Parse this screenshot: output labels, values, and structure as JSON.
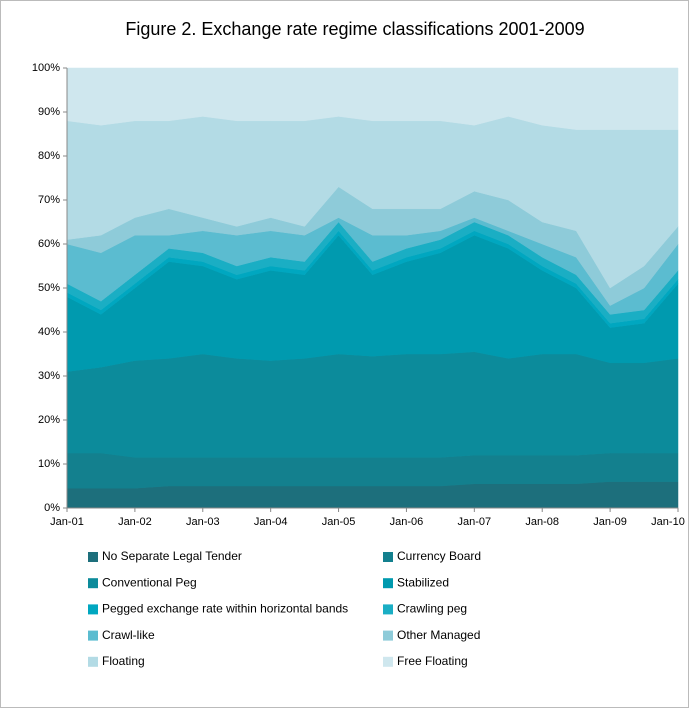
{
  "chart_data": {
    "type": "stacked_area",
    "title": "Figure 2. Exchange rate regime classifications 2001-2009",
    "categories": [
      "Jan-01",
      null,
      "Jan-02",
      null,
      "Jan-03",
      null,
      "Jan-04",
      null,
      "Jan-05",
      null,
      "Jan-06",
      null,
      "Jan-07",
      null,
      "Jan-08",
      null,
      "Jan-09",
      null,
      "Jan-10"
    ],
    "ylim": [
      0,
      100
    ],
    "yticks": [
      {
        "value": 0,
        "label": "0%"
      },
      {
        "value": 10,
        "label": "10%"
      },
      {
        "value": 20,
        "label": "20%"
      },
      {
        "value": 30,
        "label": "30%"
      },
      {
        "value": 40,
        "label": "40%"
      },
      {
        "value": 50,
        "label": "50%"
      },
      {
        "value": 60,
        "label": "60%"
      },
      {
        "value": 70,
        "label": "70%"
      },
      {
        "value": 80,
        "label": "80%"
      },
      {
        "value": 90,
        "label": "90%"
      },
      {
        "value": 100,
        "label": "100%"
      }
    ],
    "grid": false,
    "series": [
      {
        "name": "No Separate Legal Tender",
        "color": "#1d6f7c",
        "values": [
          4.5,
          4.5,
          4.5,
          5,
          5,
          5,
          5,
          5,
          5,
          5,
          5,
          5,
          5.5,
          5.5,
          5.5,
          5.5,
          6,
          6,
          6
        ]
      },
      {
        "name": "Currency Board",
        "color": "#13808e",
        "values": [
          8,
          8,
          7,
          6.5,
          6.5,
          6.5,
          6.5,
          6.5,
          6.5,
          6.5,
          6.5,
          6.5,
          6.5,
          6.5,
          6.5,
          6.5,
          6.5,
          6.5,
          6.5
        ]
      },
      {
        "name": "Conventional Peg",
        "color": "#0c8b9b",
        "values": [
          18.5,
          19.5,
          22,
          22.5,
          23.5,
          22.5,
          22,
          22.5,
          23.5,
          23,
          23.5,
          23.5,
          23.5,
          22,
          23,
          23,
          20.5,
          20.5,
          21.5
        ]
      },
      {
        "name": "Stabilized",
        "color": "#009aaf",
        "values": [
          17,
          12,
          16.5,
          22,
          20,
          18,
          20.5,
          19,
          27,
          18.5,
          21,
          23,
          26.5,
          25,
          19,
          15,
          8,
          9,
          17
        ]
      },
      {
        "name": "Pegged exchange rate within horizontal bands",
        "color": "#00a7c0",
        "values": [
          1,
          1,
          1,
          1,
          1,
          1,
          1,
          1,
          1,
          1,
          1,
          1,
          1,
          1,
          1,
          1,
          1,
          1,
          1
        ]
      },
      {
        "name": "Crawling peg",
        "color": "#1aaec4",
        "values": [
          2,
          2,
          2,
          2,
          2,
          2,
          2,
          2,
          2,
          2,
          2,
          2,
          2,
          2,
          2,
          2,
          2,
          2,
          2
        ]
      },
      {
        "name": "Crawl-like",
        "color": "#5bbcd0",
        "values": [
          9,
          11,
          9,
          3,
          5,
          7,
          6,
          6,
          1,
          6,
          3,
          2,
          1,
          1,
          3,
          4,
          2,
          5,
          6
        ]
      },
      {
        "name": "Other Managed",
        "color": "#8ecbd9",
        "values": [
          1,
          4,
          4,
          6,
          3,
          2,
          3,
          2,
          7,
          6,
          6,
          5,
          6,
          7,
          5,
          6,
          4,
          5,
          4
        ]
      },
      {
        "name": "Floating",
        "color": "#b3dbe5",
        "values": [
          27,
          25,
          22,
          20,
          23,
          24,
          22,
          24,
          16,
          20,
          20,
          20,
          15,
          19,
          22,
          23,
          36,
          31,
          22
        ]
      },
      {
        "name": "Free Floating",
        "color": "#cfe7ee",
        "values": [
          12,
          13,
          12,
          12,
          11,
          12,
          12,
          12,
          11,
          12,
          12,
          12,
          13,
          11,
          13,
          14,
          14,
          14,
          14
        ]
      }
    ]
  }
}
